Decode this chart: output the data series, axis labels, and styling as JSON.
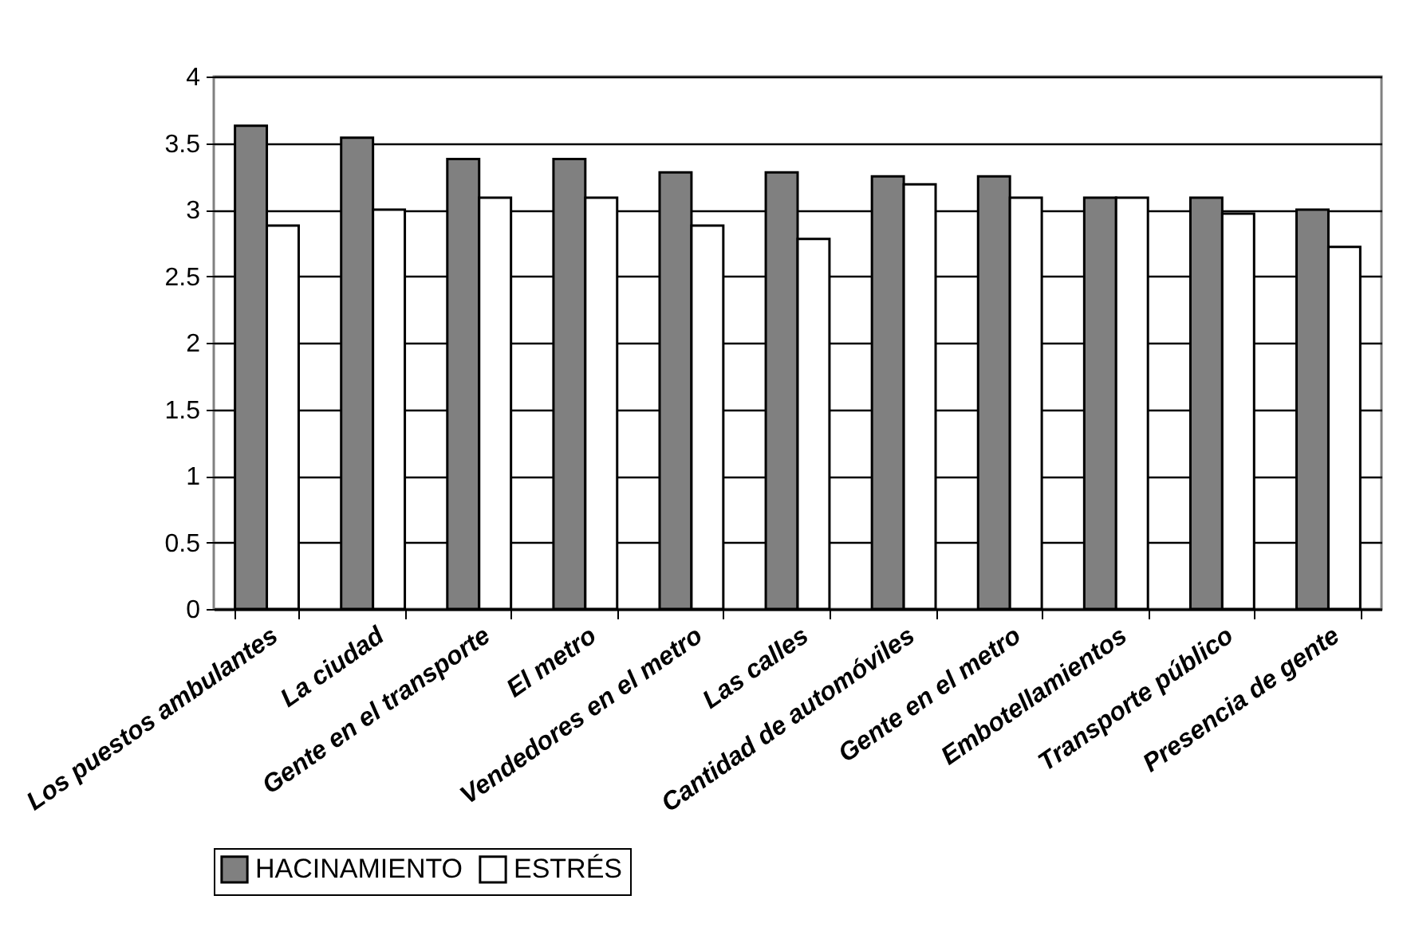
{
  "chart_data": {
    "type": "bar",
    "categories": [
      "Los puestos ambulantes",
      "La ciudad",
      "Gente en el transporte",
      "El metro",
      "Vendedores en el metro",
      "Las calles",
      "Cantidad de automóviles",
      "Gente en el metro",
      "Embotellamientos",
      "Transporte público",
      "Presencia de gente"
    ],
    "series": [
      {
        "name": "HACINAMIENTO",
        "color": "#808080",
        "values": [
          3.63,
          3.54,
          3.38,
          3.38,
          3.28,
          3.28,
          3.25,
          3.25,
          3.09,
          3.09,
          3.0
        ]
      },
      {
        "name": "ESTRÉS",
        "color": "#ffffff",
        "values": [
          2.88,
          3.0,
          3.09,
          3.09,
          2.88,
          2.78,
          3.19,
          3.09,
          3.09,
          2.97,
          2.72
        ]
      }
    ],
    "ylim": [
      0,
      4
    ],
    "yticks": [
      0,
      0.5,
      1,
      1.5,
      2,
      2.5,
      3,
      3.5,
      4
    ],
    "grid": "y",
    "legend": "bottom"
  }
}
